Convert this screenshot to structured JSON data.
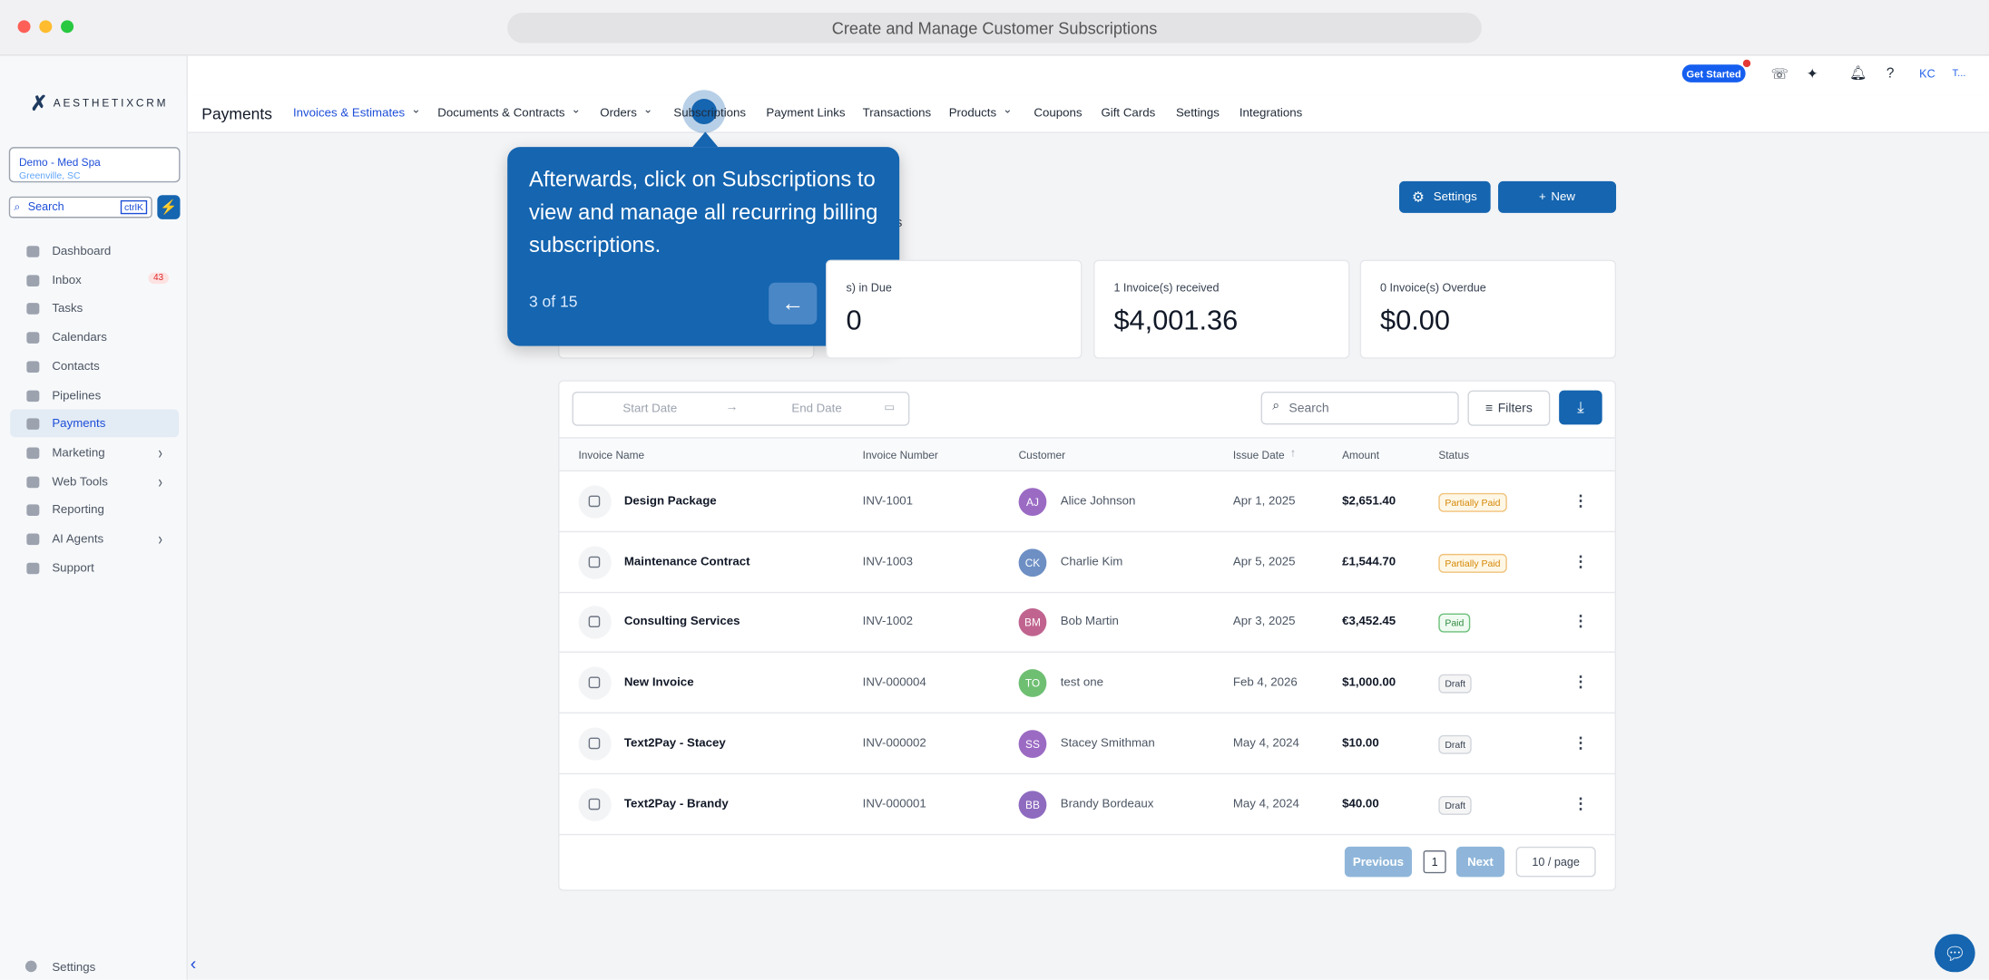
{
  "window_title": "Create and Manage Customer Subscriptions",
  "topbar": {
    "get_started": "Get Started",
    "user_initials": "KC",
    "extra": "T..."
  },
  "brand": "AESTHETIXCRM",
  "location": {
    "name": "Demo - Med Spa",
    "city": "Greenville, SC"
  },
  "search": {
    "placeholder": "Search",
    "shortcut": "ctrlK"
  },
  "sidebar": {
    "items": [
      {
        "label": "Dashboard"
      },
      {
        "label": "Inbox",
        "badge": "43"
      },
      {
        "label": "Tasks"
      },
      {
        "label": "Calendars"
      },
      {
        "label": "Contacts"
      },
      {
        "label": "Pipelines"
      },
      {
        "label": "Payments",
        "active": true
      },
      {
        "label": "Marketing",
        "arrow": true
      },
      {
        "label": "Web Tools",
        "arrow": true
      },
      {
        "label": "Reporting"
      },
      {
        "label": "AI Agents",
        "arrow": true
      },
      {
        "label": "Support"
      }
    ],
    "footer": "Settings"
  },
  "header": {
    "title": "Payments",
    "tabs": [
      {
        "label": "Invoices & Estimates",
        "dropdown": true,
        "active": true
      },
      {
        "label": "Documents & Contracts",
        "dropdown": true
      },
      {
        "label": "Orders",
        "dropdown": true
      },
      {
        "label": "Subscriptions"
      },
      {
        "label": "Payment Links"
      },
      {
        "label": "Transactions"
      },
      {
        "label": "Products",
        "dropdown": true
      },
      {
        "label": "Coupons"
      },
      {
        "label": "Gift Cards"
      },
      {
        "label": "Settings"
      },
      {
        "label": "Integrations"
      }
    ]
  },
  "tooltip": {
    "text": "Afterwards, click on Subscriptions to view and manage all recurring billing subscriptions.",
    "step": "3 of 15"
  },
  "subtitle_fragment": "s",
  "actions": {
    "settings": "Settings",
    "new": "New"
  },
  "stats": [
    {
      "label": "s) in Due",
      "value": "0"
    },
    {
      "label": "1 Invoice(s) received",
      "value": "$4,001.36"
    },
    {
      "label": "0 Invoice(s) Overdue",
      "value": "$0.00"
    }
  ],
  "filters": {
    "start": "Start Date",
    "end": "End Date",
    "search": "Search",
    "filters": "Filters"
  },
  "table": {
    "columns": [
      "Invoice Name",
      "Invoice Number",
      "Customer",
      "Issue Date",
      "Amount",
      "Status"
    ],
    "rows": [
      [
        "Design Package",
        "INV-1001",
        "AJ",
        "Alice Johnson",
        "Apr 1, 2025",
        "$2,651.40",
        "Partially Paid"
      ],
      [
        "Maintenance Contract",
        "INV-1003",
        "CK",
        "Charlie Kim",
        "Apr 5, 2025",
        "£1,544.70",
        "Partially Paid"
      ],
      [
        "Consulting Services",
        "INV-1002",
        "BM",
        "Bob Martin",
        "Apr 3, 2025",
        "€3,452.45",
        "Paid"
      ],
      [
        "New Invoice",
        "INV-000004",
        "TO",
        "test one",
        "Feb 4, 2026",
        "$1,000.00",
        "Draft"
      ],
      [
        "Text2Pay - Stacey",
        "INV-000002",
        "SS",
        "Stacey Smithman",
        "May 4, 2024",
        "$10.00",
        "Draft"
      ],
      [
        "Text2Pay - Brandy",
        "INV-000001",
        "BB",
        "Brandy Bordeaux",
        "May 4, 2024",
        "$40.00",
        "Draft"
      ]
    ]
  },
  "pagination": {
    "previous": "Previous",
    "page": "1",
    "next": "Next",
    "size": "10 / page"
  }
}
